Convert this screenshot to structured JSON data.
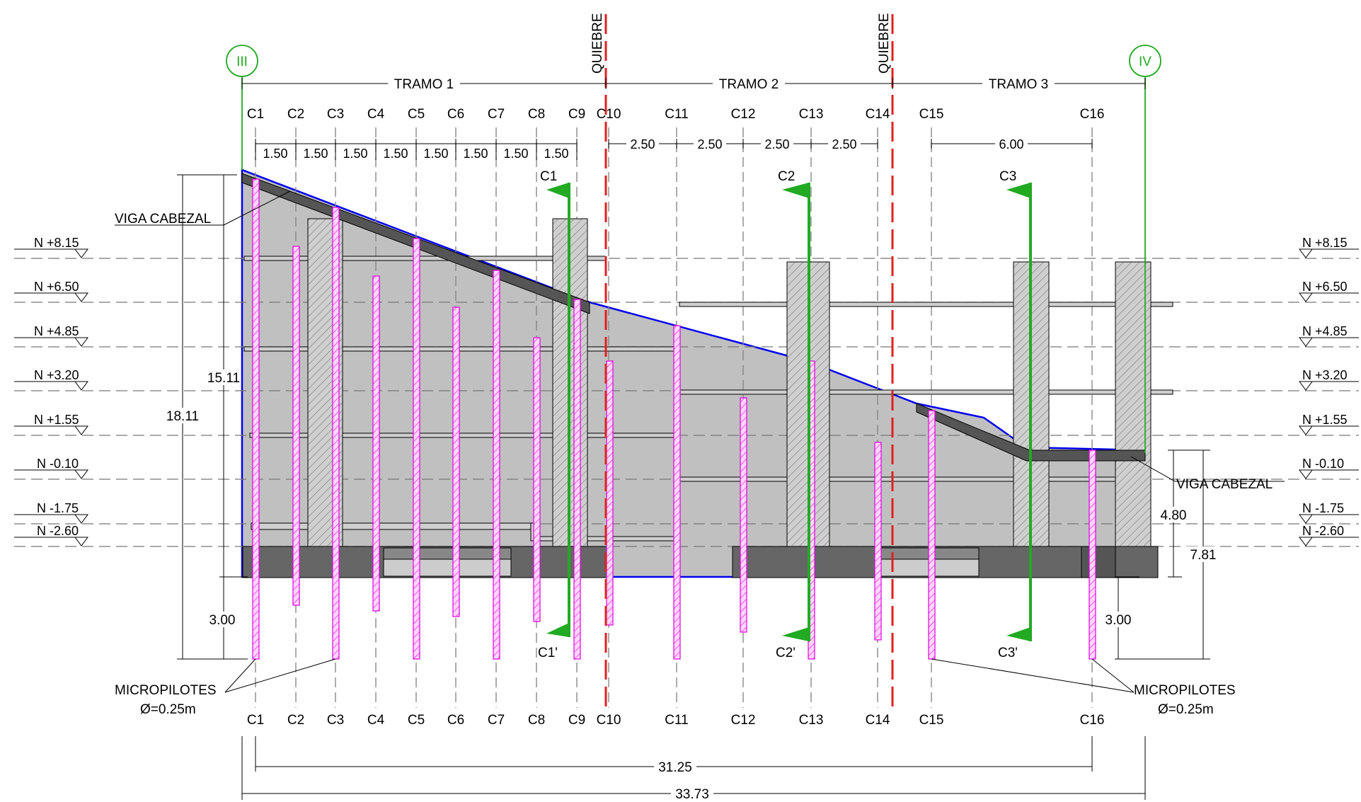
{
  "axes": {
    "left": "III",
    "right": "IV"
  },
  "quiebre_label": "QUIEBRE",
  "tramos": [
    "TRAMO 1",
    "TRAMO 2",
    "TRAMO 3"
  ],
  "columns": [
    "C1",
    "C2",
    "C3",
    "C4",
    "C5",
    "C6",
    "C7",
    "C8",
    "C9",
    "C10",
    "C11",
    "C12",
    "C13",
    "C14",
    "C15",
    "C16"
  ],
  "spacings": [
    "1.50",
    "1.50",
    "1.50",
    "1.50",
    "1.50",
    "1.50",
    "1.50",
    "1.50",
    "2.50",
    "2.50",
    "2.50",
    "2.50",
    "6.00"
  ],
  "levels": [
    "N +8.15",
    "N +6.50",
    "N +4.85",
    "N +3.20",
    "N +1.55",
    "N -0.10",
    "N -1.75",
    "N -2.60"
  ],
  "sections": [
    {
      "top": "C1",
      "bottom": "C1'"
    },
    {
      "top": "C2",
      "bottom": "C2'"
    },
    {
      "top": "C3",
      "bottom": "C3'"
    }
  ],
  "labels": {
    "viga_cabezal": "VIGA CABEZAL",
    "micropilotes": "MICROPILOTES",
    "diameter": "Ø=0.25m"
  },
  "dimensions": {
    "overall_height": "18.11",
    "inner_height": "15.11",
    "pile_left": "3.00",
    "pile_right": "3.00",
    "right_4_80": "4.80",
    "right_7_81": "7.81",
    "span_31_25": "31.25",
    "span_33_73": "33.73"
  },
  "colors": {
    "axis": "#22aa22",
    "section": "#22aa22",
    "quiebre": "#e02020",
    "pile": "#ff00ff",
    "fill": "#c0c0c0",
    "beam": "#555555",
    "outline": "#0000ee"
  }
}
